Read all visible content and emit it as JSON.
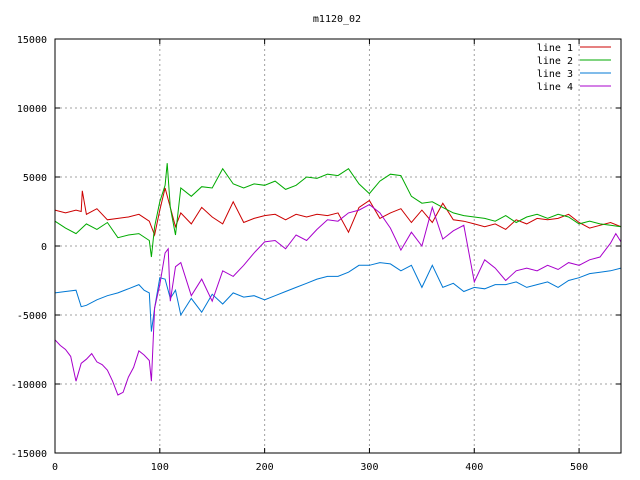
{
  "chart_data": {
    "type": "line",
    "title": "m1120_02",
    "xlabel": "",
    "ylabel": "",
    "xlim": [
      0,
      540
    ],
    "ylim": [
      -15000,
      15000
    ],
    "x_ticks": [
      0,
      100,
      200,
      300,
      400,
      500
    ],
    "y_ticks": [
      -15000,
      -10000,
      -5000,
      0,
      5000,
      10000,
      15000
    ],
    "grid": true,
    "legend_position": "top-right",
    "series": [
      {
        "name": "line 1",
        "color": "#cc0000",
        "x": [
          0,
          10,
          20,
          25,
          26,
          30,
          40,
          50,
          60,
          70,
          80,
          90,
          95,
          100,
          105,
          110,
          115,
          120,
          130,
          140,
          150,
          160,
          170,
          180,
          190,
          200,
          210,
          220,
          230,
          240,
          250,
          260,
          270,
          280,
          290,
          300,
          310,
          320,
          330,
          340,
          350,
          360,
          370,
          380,
          390,
          400,
          410,
          420,
          430,
          440,
          450,
          460,
          470,
          480,
          490,
          500,
          510,
          520,
          530,
          540
        ],
        "values": [
          2600,
          2400,
          2600,
          2500,
          4000,
          2300,
          2700,
          1900,
          2000,
          2100,
          2300,
          1800,
          800,
          2600,
          4200,
          2800,
          1400,
          2400,
          1600,
          2800,
          2100,
          1600,
          3200,
          1700,
          2000,
          2200,
          2300,
          1900,
          2300,
          2100,
          2300,
          2200,
          2400,
          1000,
          2800,
          3300,
          2000,
          2400,
          2700,
          1700,
          2600,
          1700,
          3100,
          1900,
          1800,
          1600,
          1400,
          1600,
          1200,
          1900,
          1600,
          2000,
          1900,
          2000,
          2300,
          1700,
          1300,
          1500,
          1700,
          1400
        ]
      },
      {
        "name": "line 2",
        "color": "#00aa00",
        "x": [
          0,
          10,
          20,
          30,
          40,
          50,
          60,
          70,
          80,
          90,
          92,
          95,
          100,
          105,
          107,
          110,
          115,
          120,
          130,
          140,
          150,
          160,
          170,
          180,
          190,
          200,
          210,
          220,
          230,
          240,
          250,
          260,
          270,
          280,
          290,
          300,
          310,
          320,
          330,
          340,
          350,
          360,
          370,
          380,
          390,
          400,
          410,
          420,
          430,
          440,
          450,
          460,
          470,
          480,
          490,
          500,
          510,
          520,
          530,
          540
        ],
        "values": [
          1800,
          1300,
          900,
          1600,
          1200,
          1700,
          600,
          800,
          900,
          400,
          -800,
          1400,
          3200,
          4400,
          6000,
          2800,
          800,
          4200,
          3600,
          4300,
          4200,
          5600,
          4500,
          4200,
          4500,
          4400,
          4700,
          4100,
          4400,
          5000,
          4900,
          5200,
          5100,
          5600,
          4500,
          3800,
          4700,
          5200,
          5100,
          3600,
          3100,
          3200,
          2800,
          2400,
          2200,
          2100,
          2000,
          1800,
          2200,
          1700,
          2100,
          2300,
          2000,
          2300,
          2100,
          1600,
          1800,
          1600,
          1500,
          1400
        ]
      },
      {
        "name": "line 3",
        "color": "#0078d4",
        "x": [
          0,
          10,
          20,
          25,
          30,
          40,
          50,
          60,
          70,
          80,
          85,
          90,
          92,
          95,
          100,
          105,
          110,
          115,
          120,
          130,
          140,
          150,
          160,
          170,
          180,
          190,
          200,
          210,
          220,
          230,
          240,
          250,
          260,
          270,
          280,
          290,
          300,
          310,
          320,
          330,
          340,
          350,
          360,
          370,
          380,
          390,
          400,
          410,
          420,
          430,
          440,
          450,
          460,
          470,
          480,
          490,
          500,
          510,
          520,
          530,
          540
        ],
        "values": [
          -3400,
          -3300,
          -3200,
          -4400,
          -4300,
          -3900,
          -3600,
          -3400,
          -3100,
          -2800,
          -3200,
          -3400,
          -6200,
          -4500,
          -2300,
          -2400,
          -3800,
          -3200,
          -5000,
          -3800,
          -4800,
          -3500,
          -4200,
          -3400,
          -3700,
          -3600,
          -3900,
          -3600,
          -3300,
          -3000,
          -2700,
          -2400,
          -2200,
          -2200,
          -1900,
          -1400,
          -1400,
          -1200,
          -1300,
          -1800,
          -1400,
          -3000,
          -1400,
          -3000,
          -2700,
          -3300,
          -3000,
          -3100,
          -2800,
          -2800,
          -2600,
          -3000,
          -2800,
          -2600,
          -3000,
          -2500,
          -2300,
          -2000,
          -1900,
          -1800,
          -1600
        ]
      },
      {
        "name": "line 4",
        "color": "#a800cc",
        "x": [
          0,
          5,
          10,
          15,
          20,
          25,
          30,
          35,
          40,
          45,
          50,
          55,
          60,
          65,
          70,
          75,
          80,
          85,
          90,
          92,
          95,
          100,
          105,
          108,
          110,
          115,
          120,
          130,
          140,
          150,
          160,
          170,
          180,
          190,
          200,
          210,
          220,
          230,
          240,
          250,
          260,
          270,
          280,
          290,
          300,
          310,
          320,
          330,
          340,
          350,
          360,
          370,
          380,
          390,
          400,
          410,
          420,
          430,
          440,
          450,
          460,
          470,
          480,
          490,
          500,
          510,
          520,
          530,
          535,
          540
        ],
        "values": [
          -6800,
          -7200,
          -7500,
          -8000,
          -9800,
          -8500,
          -8200,
          -7800,
          -8400,
          -8600,
          -9000,
          -9800,
          -10800,
          -10600,
          -9500,
          -8800,
          -7600,
          -7900,
          -8300,
          -9800,
          -4500,
          -2800,
          -500,
          -200,
          -4000,
          -1500,
          -1200,
          -3600,
          -2400,
          -4000,
          -1800,
          -2200,
          -1400,
          -500,
          300,
          400,
          -200,
          800,
          400,
          1200,
          1900,
          1800,
          2400,
          2600,
          3000,
          2400,
          1300,
          -300,
          1000,
          0,
          2800,
          500,
          1100,
          1500,
          -2600,
          -1000,
          -1600,
          -2500,
          -1800,
          -1600,
          -1800,
          -1400,
          -1700,
          -1200,
          -1400,
          -1000,
          -800,
          200,
          900,
          300
        ]
      }
    ]
  }
}
